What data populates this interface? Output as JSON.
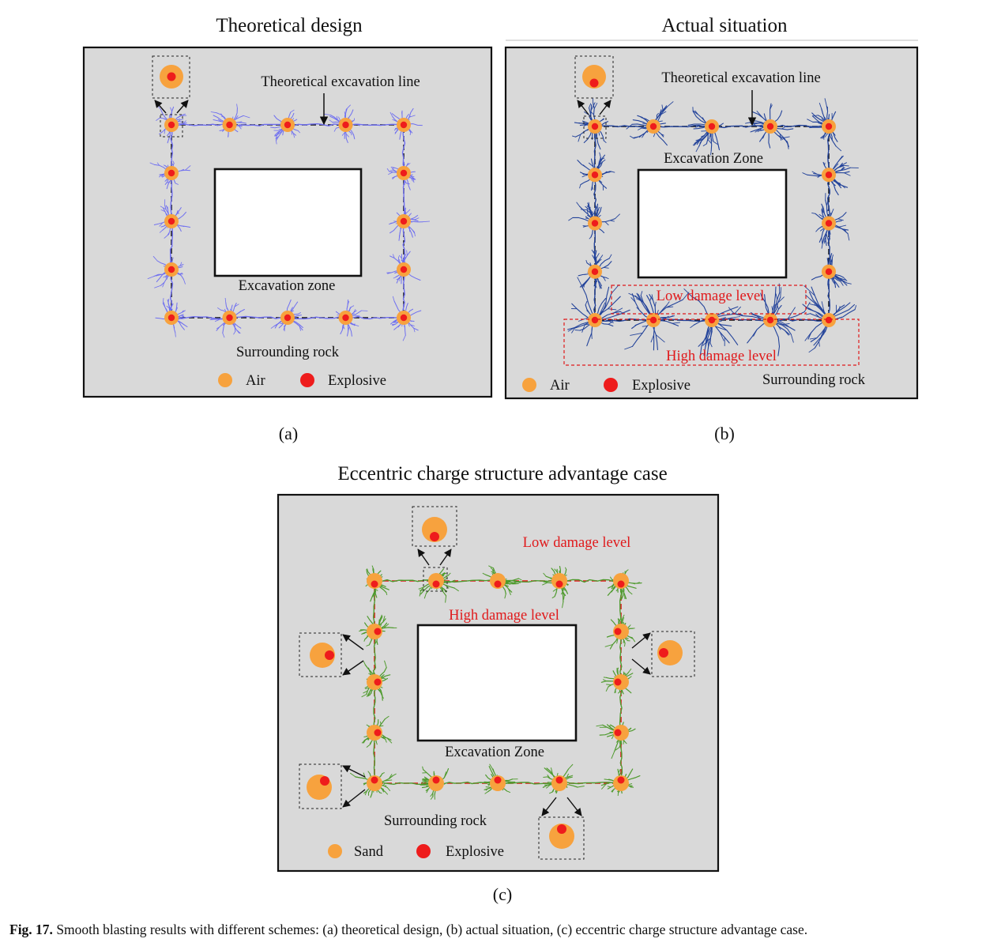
{
  "panel_a": {
    "title": "Theoretical design",
    "excavation_line_label": "Theoretical excavation line",
    "excavation_zone_label": "Excavation zone",
    "surrounding_rock_label": "Surrounding rock",
    "legend_air": "Air",
    "legend_explosive": "Explosive",
    "sublabel": "(a)"
  },
  "panel_b": {
    "title": "Actual situation",
    "excavation_line_label": "Theoretical excavation line",
    "excavation_zone_label": "Excavation Zone",
    "low_damage_label": "Low damage level",
    "high_damage_label": "High damage level",
    "surrounding_rock_label": "Surrounding rock",
    "legend_air": "Air",
    "legend_explosive": "Explosive",
    "sublabel": "(b)"
  },
  "panel_c": {
    "title": "Eccentric charge structure advantage case",
    "low_damage_label": "Low damage level",
    "high_damage_label": "High damage level",
    "excavation_zone_label": "Excavation Zone",
    "surrounding_rock_label": "Surrounding rock",
    "legend_sand": "Sand",
    "legend_explosive": "Explosive",
    "sublabel": "(c)"
  },
  "caption": {
    "label": "Fig. 17.",
    "text": "Smooth blasting results with different schemes: (a) theoretical design, (b) actual situation, (c) eccentric charge structure advantage case."
  },
  "colors": {
    "background_panel": "#d9d9d9",
    "air_sand": "#f7a23e",
    "explosive": "#ee1c1c",
    "crack_theoretical": "#6f6ff0",
    "crack_actual": "#23439a",
    "crack_eccentric": "#4f9a2e",
    "damage_label": "#e0191b"
  }
}
